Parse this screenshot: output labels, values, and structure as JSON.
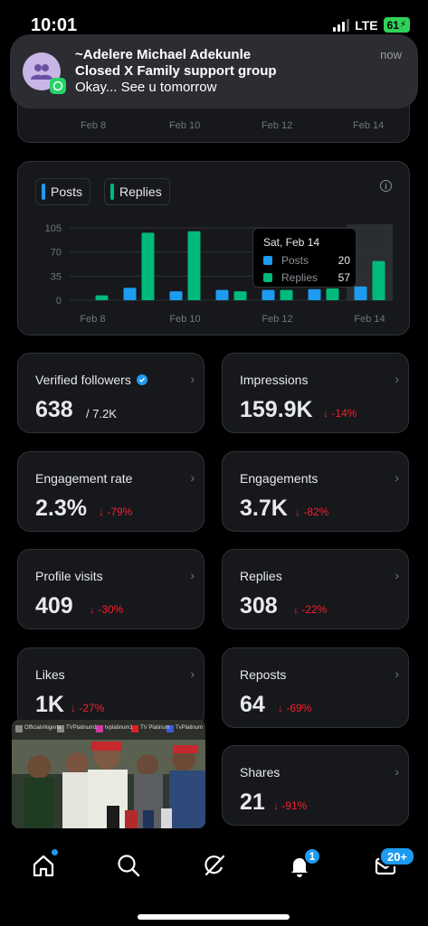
{
  "status_bar": {
    "time": "10:01",
    "network": "LTE",
    "battery": "61"
  },
  "notification": {
    "line1": "~Adelere Michael Adekunle",
    "line2": "Closed X Family support group",
    "message": "Okay... See u tomorrow",
    "when": "now",
    "app_icon": "whatsapp-icon",
    "avatar_icon": "group-icon"
  },
  "top_chart": {
    "x_labels": [
      "Feb 8",
      "Feb 10",
      "Feb 12",
      "Feb 14"
    ]
  },
  "legend": {
    "posts": "Posts",
    "replies": "Replies"
  },
  "colors": {
    "posts": "#1d9bf0",
    "replies": "#00ba7c",
    "negative": "#f4212e",
    "accent": "#1d9bf0"
  },
  "chart_data": {
    "type": "bar",
    "categories": [
      "Feb 8",
      "Feb 9",
      "Feb 10",
      "Feb 11",
      "Feb 12",
      "Feb 13",
      "Feb 14"
    ],
    "x_tick_labels": [
      "Feb 8",
      "Feb 10",
      "Feb 12",
      "Feb 14"
    ],
    "y_ticks": [
      0,
      35,
      70,
      105
    ],
    "ylim": [
      0,
      105
    ],
    "series": [
      {
        "name": "Posts",
        "values": [
          0,
          18,
          13,
          15,
          15,
          16,
          20
        ]
      },
      {
        "name": "Replies",
        "values": [
          7,
          98,
          100,
          13,
          15,
          17,
          57
        ]
      }
    ],
    "grid": true,
    "highlighted_category": "Feb 14"
  },
  "tooltip": {
    "date": "Sat, Feb 14",
    "posts_label": "Posts",
    "posts_value": "20",
    "replies_label": "Replies",
    "replies_value": "57"
  },
  "metrics": [
    {
      "label": "Verified followers",
      "value": "638",
      "sub": "/ 7.2K",
      "change": "",
      "verified": true
    },
    {
      "label": "Impressions",
      "value": "159.9K",
      "sub": "",
      "change": "↓ -14%"
    },
    {
      "label": "Engagement rate",
      "value": "2.3%",
      "sub": "",
      "change": "↓ -79%"
    },
    {
      "label": "Engagements",
      "value": "3.7K",
      "sub": "",
      "change": "↓ -82%"
    },
    {
      "label": "Profile visits",
      "value": "409",
      "sub": "",
      "change": "↓ -30%"
    },
    {
      "label": "Replies",
      "value": "308",
      "sub": "",
      "change": "↓ -22%"
    },
    {
      "label": "Likes",
      "value": "1K",
      "sub": "",
      "change": "↓ -27%"
    },
    {
      "label": "Reposts",
      "value": "64",
      "sub": "",
      "change": "↓ -69%"
    },
    {
      "label": "Shares",
      "value": "21",
      "sub": "",
      "change": "↓ -91%"
    }
  ],
  "video_overlay": {
    "channel_tags": [
      "OfficialsNigeria",
      "TVPlatinum1",
      "tvplatinum1",
      "TV Platinum",
      "TvPlatinum"
    ]
  },
  "nav": {
    "icons": [
      "home-icon",
      "search-icon",
      "grok-icon",
      "notifications-icon",
      "messages-icon"
    ],
    "notifications_badge": "1",
    "messages_badge": "20+"
  }
}
